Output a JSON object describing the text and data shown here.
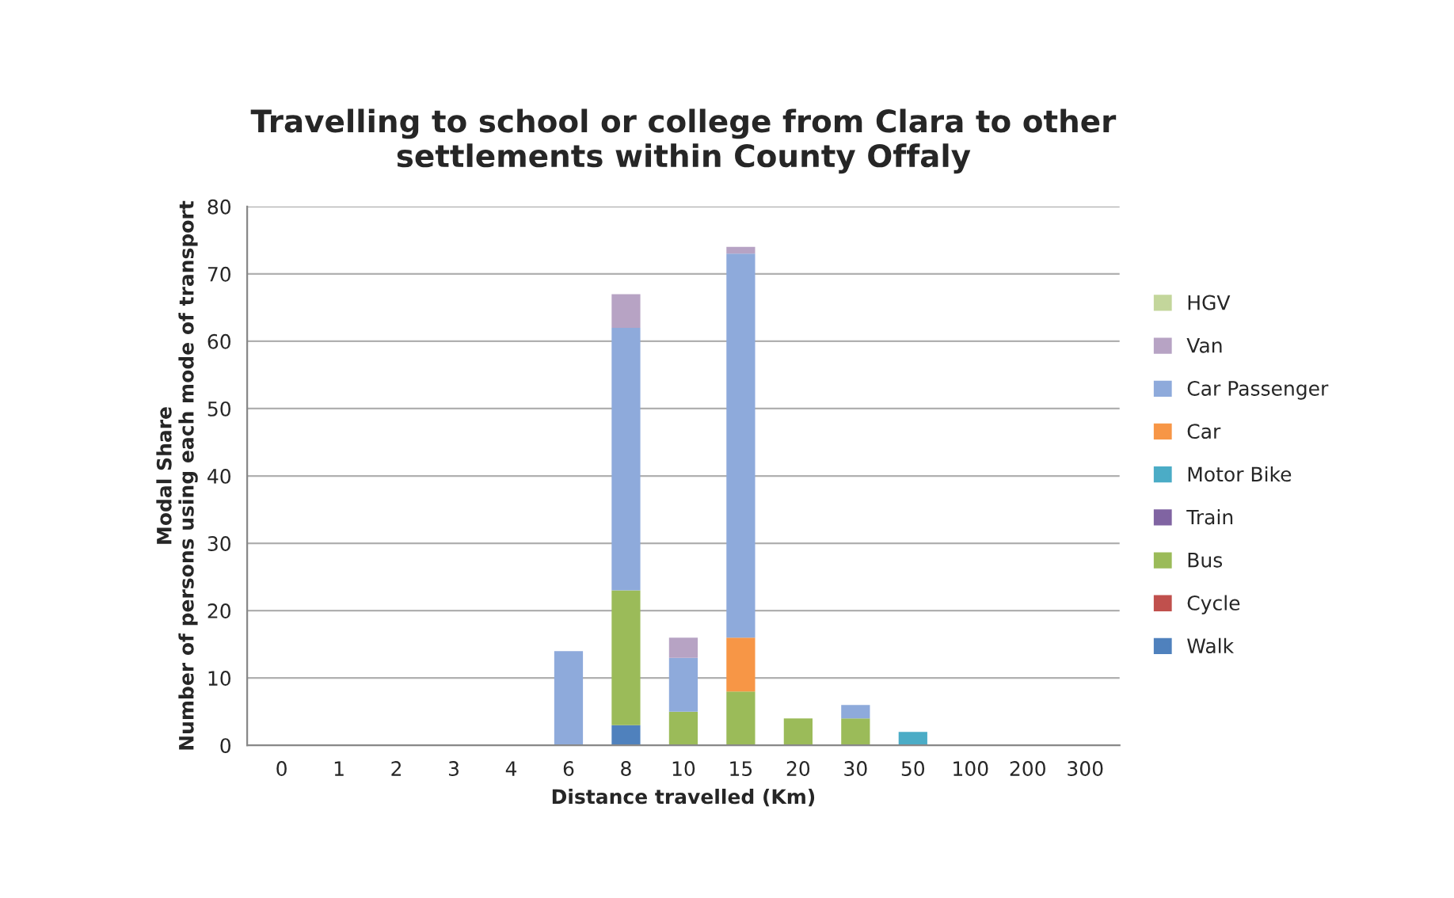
{
  "chart_data": {
    "type": "bar",
    "stacked": true,
    "title": "Travelling to school or college from Clara to other\nsettlements within County Offaly",
    "xlabel": "Distance travelled (Km)",
    "ylabel": "Modal Share\nNumber of persons using each mode of transport",
    "categories": [
      "0",
      "1",
      "2",
      "3",
      "4",
      "6",
      "8",
      "10",
      "15",
      "20",
      "30",
      "50",
      "100",
      "200",
      "300"
    ],
    "ylim": [
      0,
      80
    ],
    "yticks": [
      0,
      10,
      20,
      30,
      40,
      50,
      60,
      70,
      80
    ],
    "grid": "y",
    "legend": "right",
    "series": [
      {
        "name": "Walk",
        "color": "#4f81bd",
        "values": [
          0,
          0,
          0,
          0,
          0,
          0,
          3,
          0,
          0,
          0,
          0,
          0,
          0,
          0,
          0
        ]
      },
      {
        "name": "Cycle",
        "color": "#c0504d",
        "values": [
          0,
          0,
          0,
          0,
          0,
          0,
          0,
          0,
          0,
          0,
          0,
          0,
          0,
          0,
          0
        ]
      },
      {
        "name": "Bus",
        "color": "#9bbb59",
        "values": [
          0,
          0,
          0,
          0,
          0,
          0,
          20,
          5,
          8,
          4,
          4,
          0,
          0,
          0,
          0
        ]
      },
      {
        "name": "Train",
        "color": "#8064a2",
        "values": [
          0,
          0,
          0,
          0,
          0,
          0,
          0,
          0,
          0,
          0,
          0,
          0,
          0,
          0,
          0
        ]
      },
      {
        "name": "Motor Bike",
        "color": "#4bacc6",
        "values": [
          0,
          0,
          0,
          0,
          0,
          0,
          0,
          0,
          0,
          0,
          0,
          2,
          0,
          0,
          0
        ]
      },
      {
        "name": "Car",
        "color": "#f79646",
        "values": [
          0,
          0,
          0,
          0,
          0,
          0,
          0,
          0,
          8,
          0,
          0,
          0,
          0,
          0,
          0
        ]
      },
      {
        "name": "Car Passenger",
        "color": "#8eaadb",
        "values": [
          0,
          0,
          0,
          0,
          0,
          14,
          39,
          8,
          57,
          0,
          2,
          0,
          0,
          0,
          0
        ]
      },
      {
        "name": "Van",
        "color": "#b7a3c4",
        "values": [
          0,
          0,
          0,
          0,
          0,
          0,
          5,
          3,
          1,
          0,
          0,
          0,
          0,
          0,
          0
        ]
      },
      {
        "name": "HGV",
        "color": "#c3d69b",
        "values": [
          0,
          0,
          0,
          0,
          0,
          0,
          0,
          0,
          0,
          0,
          0,
          0,
          0,
          0,
          0
        ]
      }
    ]
  }
}
